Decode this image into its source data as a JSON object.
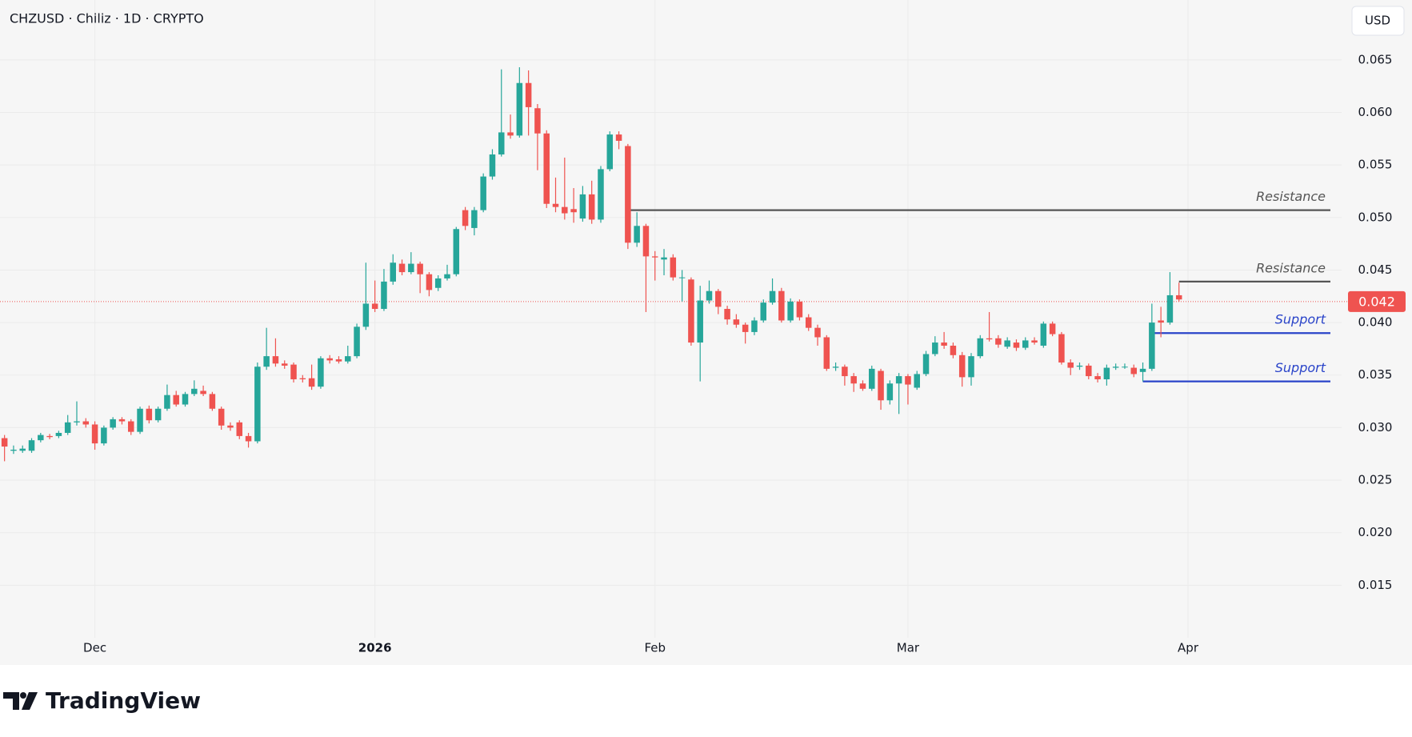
{
  "chart_data": {
    "type": "candlestick",
    "title": "CHZUSD · Chiliz · 1D · CRYPTO",
    "currency": "USD",
    "up_color": "#26a69a",
    "down_color": "#ef5350",
    "open": [
      0.029,
      0.0278,
      0.0278,
      0.0278,
      0.0288,
      0.0292,
      0.0292,
      0.0295,
      0.0305,
      0.0306,
      0.0303,
      0.0285,
      0.03,
      0.0308,
      0.0306,
      0.0296,
      0.0318,
      0.0307,
      0.0318,
      0.0331,
      0.0322,
      0.0332,
      0.0335,
      0.0332,
      0.0318,
      0.0302,
      0.0305,
      0.0292,
      0.0287,
      0.0358,
      0.0368,
      0.0361,
      0.036,
      0.0347,
      0.0347,
      0.0339,
      0.0366,
      0.0365,
      0.0363,
      0.0368,
      0.0396,
      0.0418,
      0.0413,
      0.0439,
      0.0456,
      0.0448,
      0.0456,
      0.0446,
      0.0433,
      0.0442,
      0.0446,
      0.0507,
      0.049,
      0.0507,
      0.0539,
      0.056,
      0.0581,
      0.0578,
      0.0628,
      0.0604,
      0.058,
      0.0513,
      0.051,
      0.0508,
      0.0499,
      0.0522,
      0.0498,
      0.0546,
      0.0579,
      0.0568,
      0.0476,
      0.0492,
      0.0463,
      0.046,
      0.0462,
      0.0443,
      0.0441,
      0.0381,
      0.0421,
      0.043,
      0.0413,
      0.0403,
      0.0398,
      0.0391,
      0.0402,
      0.0419,
      0.043,
      0.0402,
      0.042,
      0.0405,
      0.0395,
      0.0386,
      0.0357,
      0.0358,
      0.0349,
      0.0342,
      0.0337,
      0.0354,
      0.0326,
      0.0342,
      0.0349,
      0.0338,
      0.0351,
      0.037,
      0.0381,
      0.0378,
      0.0369,
      0.0348,
      0.0368,
      0.0385,
      0.0385,
      0.0377,
      0.0381,
      0.0376,
      0.0383,
      0.0378,
      0.0399,
      0.0389,
      0.0362,
      0.0358,
      0.0359,
      0.0349,
      0.0346,
      0.0357,
      0.0358,
      0.0357,
      0.0353,
      0.0356,
      0.0402,
      0.04,
      0.0426
    ],
    "high": [
      0.0293,
      0.0283,
      0.0283,
      0.029,
      0.0295,
      0.0294,
      0.0297,
      0.0312,
      0.0325,
      0.0309,
      0.0306,
      0.0302,
      0.031,
      0.031,
      0.0308,
      0.032,
      0.0321,
      0.032,
      0.0341,
      0.0335,
      0.0334,
      0.0345,
      0.034,
      0.0334,
      0.032,
      0.0305,
      0.0307,
      0.0295,
      0.0362,
      0.0395,
      0.0385,
      0.0364,
      0.0362,
      0.035,
      0.036,
      0.0368,
      0.0369,
      0.0368,
      0.0378,
      0.0399,
      0.0457,
      0.044,
      0.0451,
      0.0465,
      0.046,
      0.0467,
      0.0458,
      0.0448,
      0.0445,
      0.0455,
      0.0491,
      0.051,
      0.051,
      0.0542,
      0.0565,
      0.0641,
      0.0598,
      0.0643,
      0.064,
      0.0608,
      0.0583,
      0.0538,
      0.0557,
      0.0528,
      0.053,
      0.0535,
      0.0549,
      0.0582,
      0.0582,
      0.057,
      0.0505,
      0.0494,
      0.0468,
      0.047,
      0.0465,
      0.045,
      0.0443,
      0.0435,
      0.044,
      0.0432,
      0.0416,
      0.0408,
      0.04,
      0.0405,
      0.0422,
      0.0442,
      0.0433,
      0.0423,
      0.0422,
      0.0408,
      0.0398,
      0.0388,
      0.0362,
      0.036,
      0.0352,
      0.0345,
      0.0359,
      0.0356,
      0.0345,
      0.0352,
      0.0351,
      0.0354,
      0.0373,
      0.0387,
      0.0391,
      0.0381,
      0.0372,
      0.0371,
      0.0388,
      0.041,
      0.0388,
      0.0386,
      0.0384,
      0.0386,
      0.0386,
      0.0401,
      0.0401,
      0.0391,
      0.0365,
      0.0362,
      0.0361,
      0.0352,
      0.036,
      0.0361,
      0.0361,
      0.036,
      0.0362,
      0.0418,
      0.0415,
      0.0448,
      0.0438
    ],
    "low": [
      0.0268,
      0.0275,
      0.0276,
      0.0276,
      0.0286,
      0.0289,
      0.029,
      0.0293,
      0.0302,
      0.03,
      0.0279,
      0.0283,
      0.0298,
      0.0303,
      0.0293,
      0.0294,
      0.0304,
      0.0305,
      0.0316,
      0.032,
      0.032,
      0.033,
      0.033,
      0.0316,
      0.0298,
      0.0297,
      0.0289,
      0.0281,
      0.0285,
      0.0355,
      0.0358,
      0.0356,
      0.0343,
      0.0343,
      0.0336,
      0.0337,
      0.0361,
      0.0361,
      0.0361,
      0.0366,
      0.0393,
      0.041,
      0.0411,
      0.0436,
      0.0445,
      0.0446,
      0.0428,
      0.0425,
      0.043,
      0.044,
      0.0444,
      0.0488,
      0.0483,
      0.0505,
      0.0536,
      0.0558,
      0.0575,
      0.0576,
      0.0578,
      0.0545,
      0.0509,
      0.0505,
      0.0498,
      0.0495,
      0.0496,
      0.0494,
      0.0495,
      0.0544,
      0.0565,
      0.047,
      0.0472,
      0.041,
      0.044,
      0.0445,
      0.044,
      0.042,
      0.0378,
      0.0344,
      0.0418,
      0.0408,
      0.0398,
      0.0395,
      0.038,
      0.0388,
      0.04,
      0.0417,
      0.04,
      0.04,
      0.0402,
      0.0392,
      0.0378,
      0.0354,
      0.0354,
      0.034,
      0.0334,
      0.0335,
      0.0335,
      0.0317,
      0.0322,
      0.0313,
      0.0322,
      0.0336,
      0.0349,
      0.0368,
      0.0375,
      0.0366,
      0.0339,
      0.034,
      0.0366,
      0.0382,
      0.0376,
      0.0375,
      0.0373,
      0.0374,
      0.0379,
      0.0376,
      0.0387,
      0.036,
      0.035,
      0.0355,
      0.0346,
      0.0343,
      0.034,
      0.0355,
      0.0356,
      0.0348,
      0.0344,
      0.0354,
      0.0386,
      0.0398,
      0.042
    ],
    "close": [
      0.0282,
      0.0279,
      0.028,
      0.0288,
      0.0293,
      0.0291,
      0.0295,
      0.0305,
      0.0306,
      0.0303,
      0.0285,
      0.03,
      0.0308,
      0.0306,
      0.0296,
      0.0318,
      0.0307,
      0.0318,
      0.0331,
      0.0322,
      0.0332,
      0.0337,
      0.0332,
      0.0318,
      0.0302,
      0.03,
      0.0292,
      0.0287,
      0.0358,
      0.0368,
      0.0361,
      0.0359,
      0.0346,
      0.0346,
      0.0339,
      0.0366,
      0.0364,
      0.0363,
      0.0368,
      0.0396,
      0.0418,
      0.0413,
      0.0439,
      0.0457,
      0.0448,
      0.0456,
      0.0446,
      0.0431,
      0.0442,
      0.0446,
      0.0489,
      0.0492,
      0.0507,
      0.0539,
      0.056,
      0.0581,
      0.0578,
      0.0628,
      0.0605,
      0.058,
      0.0513,
      0.051,
      0.0504,
      0.0505,
      0.0522,
      0.0498,
      0.0546,
      0.0579,
      0.0573,
      0.0476,
      0.0492,
      0.0463,
      0.0462,
      0.0462,
      0.0443,
      0.0443,
      0.0381,
      0.0421,
      0.043,
      0.0415,
      0.0403,
      0.0398,
      0.0391,
      0.0402,
      0.0419,
      0.043,
      0.0402,
      0.042,
      0.0405,
      0.0395,
      0.0386,
      0.0356,
      0.0358,
      0.0349,
      0.0342,
      0.0337,
      0.0356,
      0.0326,
      0.0342,
      0.0349,
      0.0341,
      0.0351,
      0.037,
      0.0381,
      0.0378,
      0.0369,
      0.0348,
      0.0368,
      0.0385,
      0.0384,
      0.0379,
      0.0383,
      0.0376,
      0.0383,
      0.0381,
      0.0399,
      0.0389,
      0.0362,
      0.0357,
      0.0359,
      0.0349,
      0.0346,
      0.0357,
      0.0358,
      0.0358,
      0.0351,
      0.0356,
      0.04,
      0.04,
      0.0426,
      0.0422
    ],
    "xlim": [
      -0.5,
      148
    ],
    "xticks": [
      {
        "value": 10,
        "label": "Dec"
      },
      {
        "value": 41,
        "label": "2026"
      },
      {
        "value": 72,
        "label": "Feb"
      },
      {
        "value": 100,
        "label": "Mar"
      },
      {
        "value": 131,
        "label": "Apr"
      }
    ],
    "ylim": [
      0.01,
      0.0707
    ],
    "yticks": [
      {
        "value": 0.015,
        "label": "0.015"
      },
      {
        "value": 0.02,
        "label": "0.020"
      },
      {
        "value": 0.025,
        "label": "0.025"
      },
      {
        "value": 0.03,
        "label": "0.030"
      },
      {
        "value": 0.035,
        "label": "0.035"
      },
      {
        "value": 0.04,
        "label": "0.040"
      },
      {
        "value": 0.045,
        "label": "0.045"
      },
      {
        "value": 0.05,
        "label": "0.050"
      },
      {
        "value": 0.055,
        "label": "0.055"
      },
      {
        "value": 0.06,
        "label": "0.060"
      },
      {
        "value": 0.065,
        "label": "0.065"
      }
    ],
    "grid": true,
    "levels": [
      {
        "label": "Resistance",
        "value": 0.0507,
        "color": "#555555"
      },
      {
        "label": "Resistance",
        "value": 0.0439,
        "color": "#555555"
      },
      {
        "label": "Support",
        "value": 0.039,
        "color": "#2a44c9"
      },
      {
        "label": "Support",
        "value": 0.0344,
        "color": "#2a44c9"
      }
    ],
    "last_price": 0.042,
    "last_price_color": "#ef5350"
  },
  "brand": "TradingView"
}
